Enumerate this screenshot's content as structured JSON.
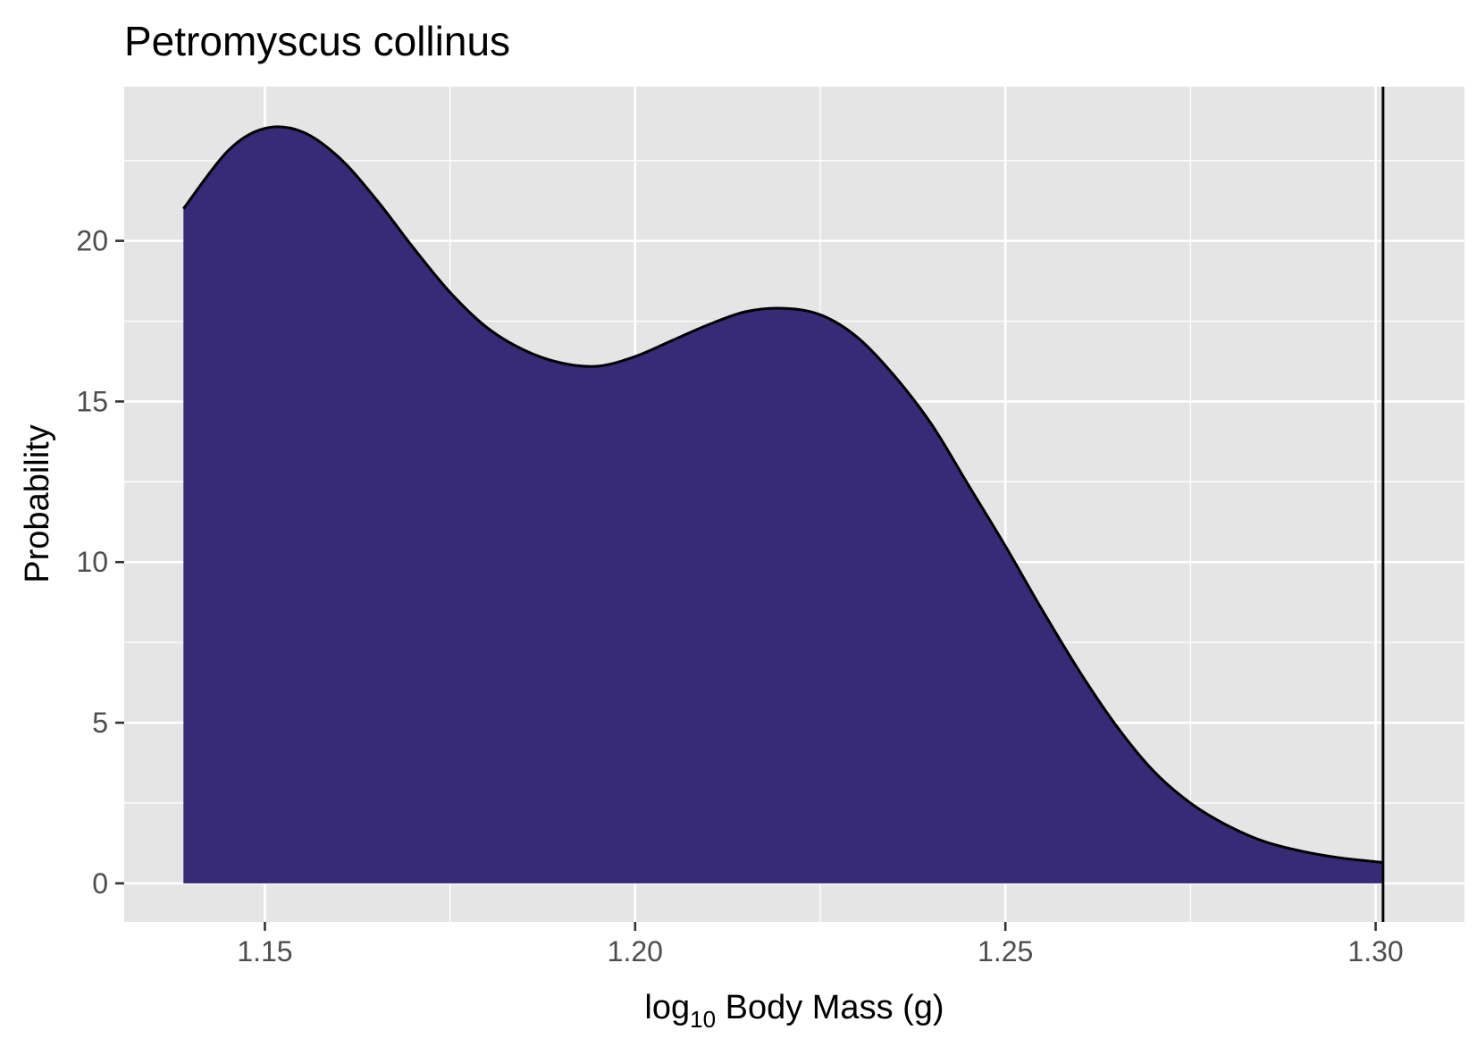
{
  "chart_data": {
    "type": "area",
    "title": "Petromyscus collinus",
    "xlabel": {
      "prefix": "log",
      "subscript": "10",
      "suffix": " Body Mass (g)"
    },
    "ylabel": "Probability",
    "xlim": [
      1.131,
      1.312
    ],
    "ylim": [
      -1.2,
      24.8
    ],
    "x_ticks": [
      1.15,
      1.2,
      1.25,
      1.3
    ],
    "x_tick_labels": [
      "1.15",
      "1.20",
      "1.25",
      "1.30"
    ],
    "y_ticks": [
      0,
      5,
      10,
      15,
      20
    ],
    "y_tick_labels": [
      "0",
      "5",
      "10",
      "15",
      "20"
    ],
    "grid": true,
    "fill_color": "#372a77",
    "line_color": "#000000",
    "panel_background": "#e5e5e5",
    "grid_color": "#ffffff",
    "vline_x": 1.301,
    "series": [
      {
        "x": [
          1.139,
          1.145,
          1.15,
          1.155,
          1.16,
          1.165,
          1.17,
          1.175,
          1.18,
          1.185,
          1.19,
          1.195,
          1.2,
          1.205,
          1.21,
          1.215,
          1.22,
          1.225,
          1.23,
          1.235,
          1.24,
          1.245,
          1.25,
          1.255,
          1.26,
          1.265,
          1.27,
          1.275,
          1.28,
          1.285,
          1.29,
          1.295,
          1.301
        ],
        "y": [
          21.0,
          22.8,
          23.5,
          23.4,
          22.6,
          21.3,
          19.8,
          18.4,
          17.3,
          16.6,
          16.2,
          16.1,
          16.4,
          16.9,
          17.4,
          17.8,
          17.9,
          17.7,
          17.0,
          15.8,
          14.3,
          12.4,
          10.5,
          8.5,
          6.6,
          4.9,
          3.5,
          2.5,
          1.8,
          1.3,
          1.0,
          0.8,
          0.65
        ]
      }
    ]
  }
}
